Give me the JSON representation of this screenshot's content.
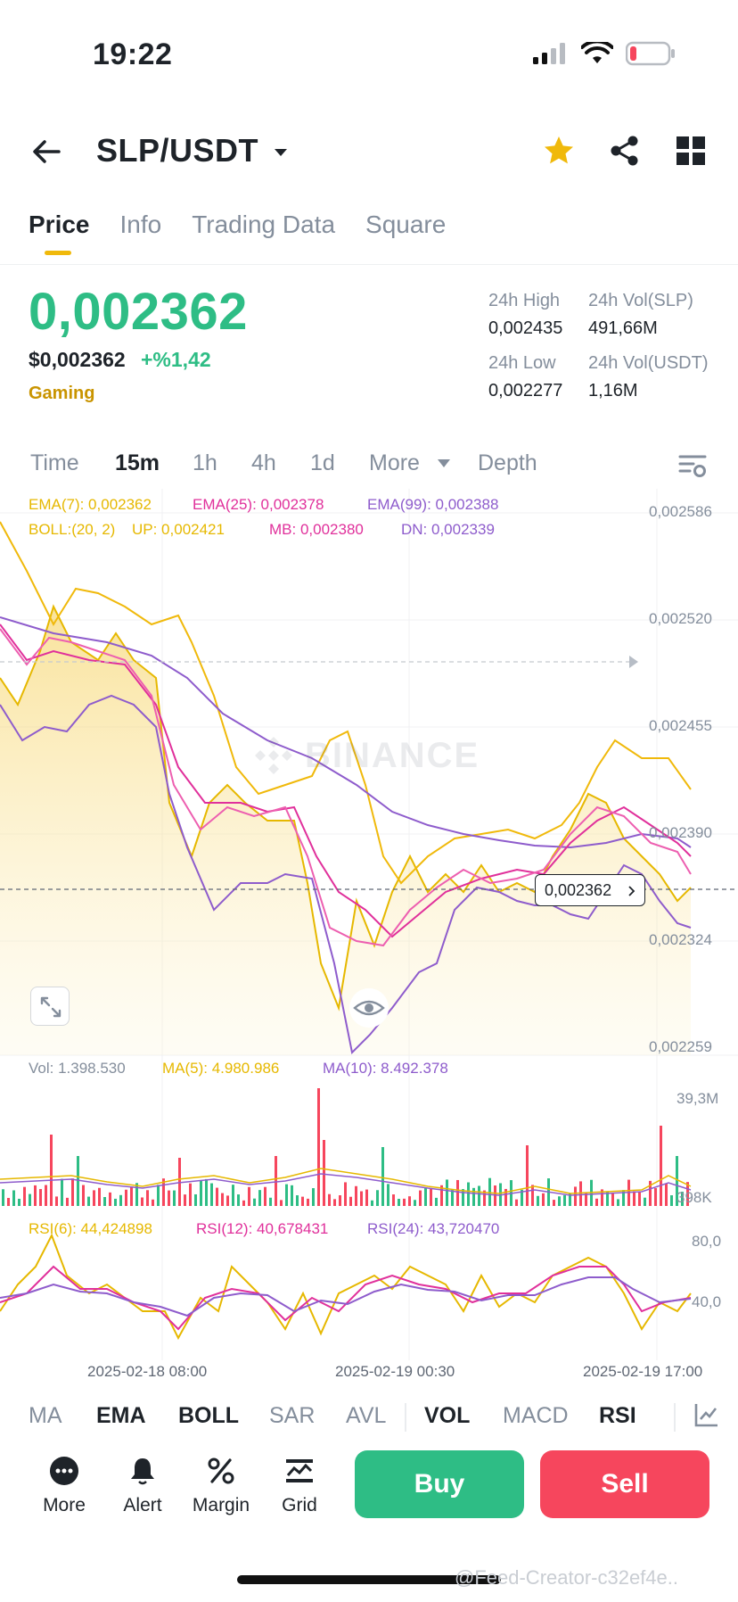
{
  "status": {
    "time": "19:22"
  },
  "header": {
    "pair": "SLP/USDT"
  },
  "tabs": [
    {
      "label": "Price"
    },
    {
      "label": "Info"
    },
    {
      "label": "Trading Data"
    },
    {
      "label": "Square"
    }
  ],
  "price": {
    "last": "0,002362",
    "usd": "$0,002362",
    "change": "+%1,42",
    "category": "Gaming"
  },
  "stats": {
    "high_label": "24h High",
    "high_value": "0,002435",
    "low_label": "24h Low",
    "low_value": "0,002277",
    "vol_base_label": "24h Vol(SLP)",
    "vol_base_value": "491,66M",
    "vol_quote_label": "24h Vol(USDT)",
    "vol_quote_value": "1,16M"
  },
  "intervals": [
    "Time",
    "15m",
    "1h",
    "4h",
    "1d",
    "More",
    "Depth"
  ],
  "indicators_top": {
    "ema7": "EMA(7): 0,002362",
    "ema25": "EMA(25): 0,002378",
    "ema99": "EMA(99): 0,002388",
    "boll": "BOLL:(20, 2)",
    "up": "UP: 0,002421",
    "mb": "MB: 0,002380",
    "dn": "DN: 0,002339"
  },
  "price_axis": [
    "0,002586",
    "0,002520",
    "0,002455",
    "0,002390",
    "0,002324",
    "0,002259"
  ],
  "current_price_tag": "0,002362",
  "watermark_logo": "BINANCE",
  "volume": {
    "vol": "Vol: 1.398.530",
    "ma5": "MA(5): 4.980.986",
    "ma10": "MA(10): 8.492.378",
    "axis_top": "39,3M",
    "axis_bottom": "398K"
  },
  "rsi": {
    "rsi6": "RSI(6): 44,424898",
    "rsi12": "RSI(12): 40,678431",
    "rsi24": "RSI(24): 43,720470",
    "axis_top": "80,0",
    "axis_mid": "40,0"
  },
  "time_axis": [
    "2025-02-18 08:00",
    "2025-02-19 00:30",
    "2025-02-19 17:00"
  ],
  "indicator_bar": [
    "MA",
    "EMA",
    "BOLL",
    "SAR",
    "AVL",
    "VOL",
    "MACD",
    "RSI"
  ],
  "bottom": {
    "more": "More",
    "alert": "Alert",
    "margin": "Margin",
    "grid": "Grid",
    "buy": "Buy",
    "sell": "Sell"
  },
  "footer_watermark": "@Feed-Creator-c32ef4e..",
  "colors": {
    "green": "#2ebd85",
    "red": "#f6465d",
    "yellow": "#f0b90b",
    "ema7": "#e6b800",
    "ema25": "#e0309b",
    "ema99": "#8e5ccc",
    "muted": "#848e9c"
  }
}
